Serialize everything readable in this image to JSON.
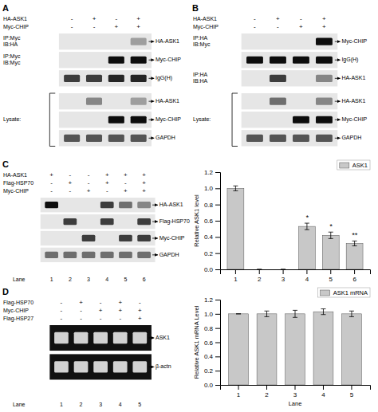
{
  "chart_data": [
    {
      "type": "blot",
      "title": "A",
      "conditions": [
        {
          "name": "HA-ASK1",
          "values": [
            "-",
            "+",
            "-",
            "+"
          ]
        },
        {
          "name": "Myc-CHIP",
          "values": [
            "-",
            "-",
            "+",
            "+"
          ]
        }
      ],
      "series": [
        {
          "name": "HA-ASK1",
          "label": "IP:Myc\nIB:HA",
          "values": [
            0,
            0,
            0,
            0.4
          ]
        },
        {
          "name": "Myc-CHIP",
          "label": "IP:Myc\nIB:Myc",
          "values": [
            0,
            0,
            1,
            1
          ]
        },
        {
          "name": "IgG(H)",
          "values": [
            0.8,
            0.8,
            0.9,
            0.9
          ]
        },
        {
          "name": "HA-ASK1",
          "group": "Lysate:",
          "values": [
            0,
            0.5,
            0,
            0.4
          ]
        },
        {
          "name": "Myc-CHIP",
          "group": "Lysate:",
          "values": [
            0,
            0,
            1,
            1
          ]
        },
        {
          "name": "GAPDH",
          "group": "Lysate:",
          "values": [
            0.7,
            0.7,
            0.7,
            0.7
          ]
        }
      ]
    },
    {
      "type": "blot",
      "title": "B",
      "conditions": [
        {
          "name": "HA-ASK1",
          "values": [
            "-",
            "+",
            "-",
            "+"
          ]
        },
        {
          "name": "Myc-CHIP",
          "values": [
            "-",
            "-",
            "+",
            "+"
          ]
        }
      ],
      "series": [
        {
          "name": "Myc-CHIP",
          "label": "IP:HA\nIB:Myc",
          "values": [
            0,
            0,
            0,
            1
          ]
        },
        {
          "name": "IgG(H)",
          "values": [
            1,
            1,
            1,
            1
          ]
        },
        {
          "name": "HA-ASK1",
          "label": "IP:HA\nIB:HA",
          "values": [
            0,
            0.8,
            0,
            0.5
          ]
        },
        {
          "name": "HA-ASK1",
          "group": "Lysate:",
          "values": [
            0,
            0.6,
            0,
            0.5
          ]
        },
        {
          "name": "Myc-CHIP",
          "group": "Lysate:",
          "values": [
            0,
            0,
            1,
            1
          ]
        },
        {
          "name": "GAPDH",
          "group": "Lysate:",
          "values": [
            0.7,
            0.7,
            0.7,
            0.7
          ]
        }
      ]
    },
    {
      "type": "blot",
      "title": "C",
      "conditions": [
        {
          "name": "HA-ASK1",
          "values": [
            "+",
            "-",
            "-",
            "+",
            "+",
            "+"
          ]
        },
        {
          "name": "Flag-HSP70",
          "values": [
            "-",
            "+",
            "-",
            "+",
            "-",
            "+"
          ]
        },
        {
          "name": "Myc-CHIP",
          "values": [
            "-",
            "-",
            "+",
            "-",
            "+",
            "+"
          ]
        }
      ],
      "series": [
        {
          "name": "HA-ASK1",
          "values": [
            1,
            0,
            0,
            0.8,
            0.6,
            0.5
          ]
        },
        {
          "name": "Flag-HSP70",
          "values": [
            0,
            0.8,
            0,
            0.8,
            0,
            0.8
          ]
        },
        {
          "name": "Myc-CHIP",
          "values": [
            0,
            0,
            0.8,
            0,
            0.8,
            0.8
          ]
        },
        {
          "name": "GAPDH",
          "values": [
            0.6,
            0.6,
            0.6,
            0.6,
            0.6,
            0.6
          ]
        }
      ],
      "categories": [
        "1",
        "2",
        "3",
        "4",
        "5",
        "6"
      ],
      "xlabel": "Lane"
    },
    {
      "type": "bar",
      "ylabel": "Relative ASK1 level",
      "categories": [
        "1",
        "2",
        "3",
        "4",
        "5",
        "6"
      ],
      "series": [
        {
          "name": "ASK1",
          "color": "#c8c8c8",
          "values": [
            1.0,
            0.0,
            0.0,
            0.53,
            0.42,
            0.32
          ],
          "errors": [
            0.03,
            0.0,
            0.0,
            0.04,
            0.04,
            0.03
          ]
        }
      ],
      "annotations": [
        null,
        null,
        null,
        "*",
        "*",
        "**"
      ],
      "ylim": [
        0.0,
        1.2
      ],
      "yticks": [
        {
          "value": 0.0,
          "label": "0.0"
        },
        0.2,
        0.4,
        0.6,
        0.8,
        {
          "value": 1.0,
          "label": "1.0"
        },
        1.2
      ],
      "legend": "upper right",
      "grid": false
    },
    {
      "type": "blot",
      "title": "D",
      "color": "#111111",
      "conditions": [
        {
          "name": "Flag-HSP70",
          "values": [
            "-",
            "+",
            "-",
            "+",
            "-"
          ]
        },
        {
          "name": "Myc-CHIP",
          "values": [
            "-",
            "-",
            "+",
            "+",
            "+"
          ]
        },
        {
          "name": "Flag-HSP27",
          "values": [
            "-",
            "-",
            "-",
            "-",
            "+"
          ]
        }
      ],
      "series": [
        {
          "name": "ASK1",
          "values": [
            0.9,
            0.9,
            0.9,
            0.9,
            0.9
          ]
        },
        {
          "name": "β-actn",
          "values": [
            0.9,
            0.9,
            0.9,
            0.9,
            0.9
          ]
        }
      ],
      "categories": [
        "1",
        "2",
        "3",
        "4",
        "5"
      ],
      "xlabel": "Lane"
    },
    {
      "type": "bar",
      "ylabel": "Relative ASK1 mRNA Level",
      "xlabel": "Lane",
      "categories": [
        "1",
        "2",
        "3",
        "4",
        "5"
      ],
      "series": [
        {
          "name": "ASK1 mRNA",
          "color": "#c8c8c8",
          "values": [
            1.0,
            1.0,
            1.0,
            1.03,
            1.0
          ],
          "errors": [
            0.0,
            0.04,
            0.05,
            0.04,
            0.04
          ]
        }
      ],
      "ylim": [
        0.0,
        1.2
      ],
      "yticks": [
        {
          "value": 0.0,
          "label": "0.0"
        },
        0.2,
        0.4,
        0.6,
        0.8,
        {
          "value": 1.0,
          "label": "1.0"
        },
        1.2
      ],
      "legend": "upper right",
      "grid": false
    }
  ]
}
